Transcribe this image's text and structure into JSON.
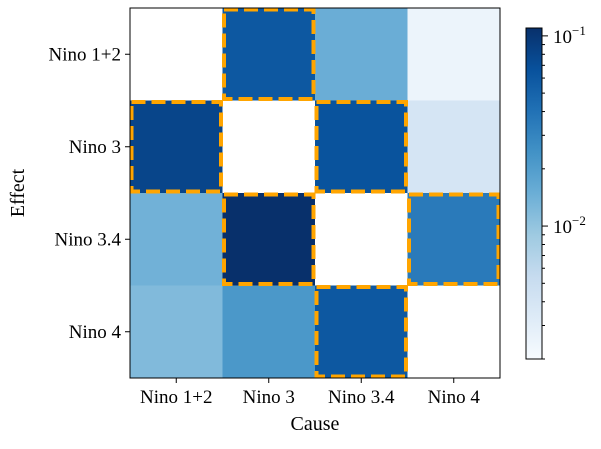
{
  "chart_data": {
    "type": "heatmap",
    "xlabel": "Cause",
    "ylabel": "Effect",
    "x_categories": [
      "Nino 1+2",
      "Nino 3",
      "Nino 3.4",
      "Nino 4"
    ],
    "y_categories": [
      "Nino 1+2",
      "Nino 3",
      "Nino 3.4",
      "Nino 4"
    ],
    "values": [
      [
        0,
        0.06,
        0.015,
        0.0025
      ],
      [
        0.08,
        0,
        0.065,
        0.004
      ],
      [
        0.014,
        0.11,
        0,
        0.035
      ],
      [
        0.012,
        0.022,
        0.06,
        0
      ]
    ],
    "highlighted": [
      [
        false,
        true,
        false,
        false
      ],
      [
        true,
        false,
        true,
        false
      ],
      [
        false,
        true,
        false,
        true
      ],
      [
        false,
        false,
        true,
        false
      ]
    ],
    "highlight_color": "#FFA500",
    "diagonal_color": "#ffffff",
    "colormap": "Blues",
    "colorbar": {
      "scale": "log",
      "range": [
        0.002,
        0.11
      ],
      "tick_labels": [
        {
          "base": "10",
          "exp": "−1",
          "value": 0.1
        },
        {
          "base": "10",
          "exp": "−2",
          "value": 0.01
        }
      ]
    }
  }
}
